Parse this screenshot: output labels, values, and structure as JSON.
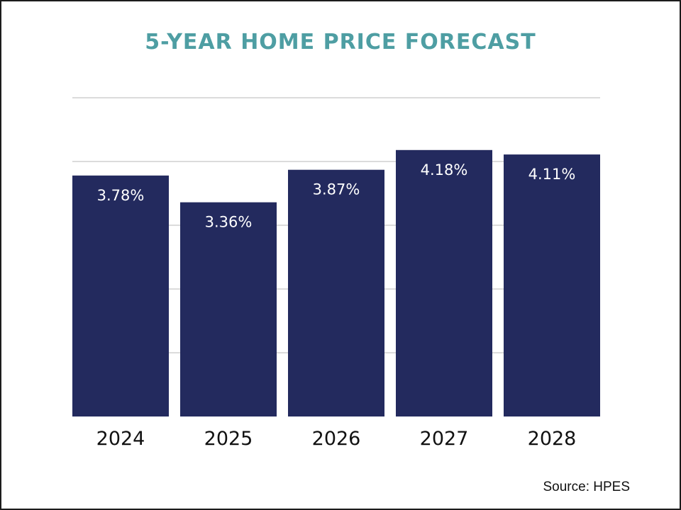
{
  "chart_data": {
    "type": "bar",
    "title": "5-YEAR HOME PRICE FORECAST",
    "categories": [
      "2024",
      "2025",
      "2026",
      "2027",
      "2028"
    ],
    "values": [
      3.78,
      3.36,
      3.87,
      4.18,
      4.11
    ],
    "data_labels": [
      "3.78%",
      "3.36%",
      "3.87%",
      "4.18%",
      "4.11%"
    ],
    "xlabel": "",
    "ylabel": "",
    "ylim": [
      0,
      5
    ],
    "grid": true,
    "source": "Source: HPES"
  },
  "colors": {
    "bar": "#232a5e",
    "title": "#4e9ea3",
    "grid": "#cfcfcf"
  }
}
